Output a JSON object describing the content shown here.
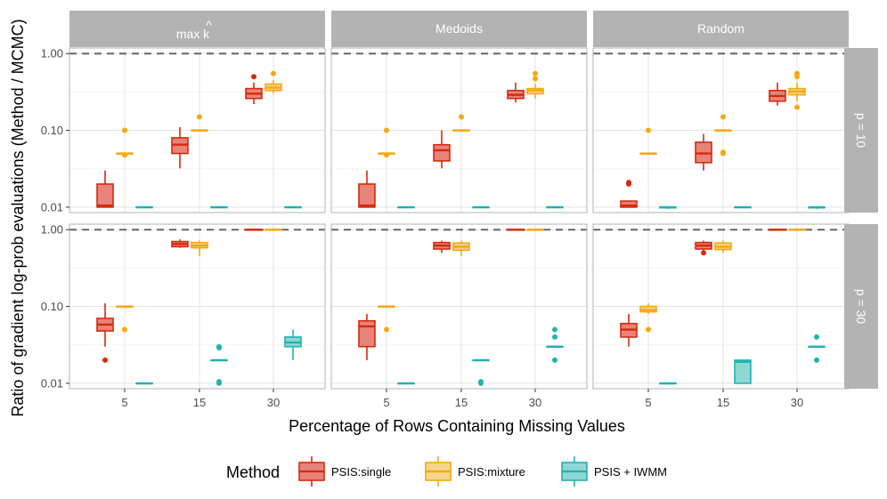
{
  "chart_data": {
    "type": "boxplot",
    "xlabel": "Percentage of Rows Containing Missing Values",
    "ylabel": "Ratio of gradient log-prob evaluations (Method / MCMC)",
    "y_scale": "log10",
    "ylim": [
      0.0085,
      1.18
    ],
    "y_ticks": [
      {
        "value": 0.01,
        "label": "0.01"
      },
      {
        "value": 0.1,
        "label": "0.10"
      },
      {
        "value": 1.0,
        "label": "1.00"
      }
    ],
    "reference_line": 1.0,
    "x_categories": [
      "5",
      "15",
      "30"
    ],
    "col_facets": [
      "max k̂",
      "Medoids",
      "Random"
    ],
    "col_facet_main": "max k",
    "col_facet_hat": "^",
    "row_facets": [
      "p = 10",
      "p = 30"
    ],
    "legend": {
      "title": "Method",
      "position": "bottom",
      "entries": [
        {
          "name": "PSIS:single",
          "stroke": "#D62A0B",
          "fill": "#E8837A"
        },
        {
          "name": "PSIS:mixture",
          "stroke": "#F5A80F",
          "fill": "#F8D58D"
        },
        {
          "name": "PSIS + IWMM",
          "stroke": "#21B3AE",
          "fill": "#8FD7D4"
        }
      ]
    },
    "panels": [
      {
        "row": 0,
        "col": 0,
        "boxes": [
          {
            "cat": 0,
            "method": 0,
            "stats": [
              0.01,
              0.01,
              0.0105,
              0.02,
              0.03
            ],
            "outliers": []
          },
          {
            "cat": 0,
            "method": 1,
            "stats": [
              0.05,
              0.05,
              0.05,
              0.05,
              0.05
            ],
            "outliers": [
              0.1,
              0.048
            ]
          },
          {
            "cat": 0,
            "method": 2,
            "stats": [
              0.01,
              0.01,
              0.01,
              0.01,
              0.01
            ],
            "outliers": []
          },
          {
            "cat": 1,
            "method": 0,
            "stats": [
              0.032,
              0.05,
              0.065,
              0.08,
              0.11
            ],
            "outliers": []
          },
          {
            "cat": 1,
            "method": 1,
            "stats": [
              0.1,
              0.1,
              0.1,
              0.1,
              0.1
            ],
            "outliers": [
              0.15
            ]
          },
          {
            "cat": 1,
            "method": 2,
            "stats": [
              0.01,
              0.01,
              0.01,
              0.01,
              0.01
            ],
            "outliers": []
          },
          {
            "cat": 2,
            "method": 0,
            "stats": [
              0.22,
              0.26,
              0.3,
              0.35,
              0.42
            ],
            "outliers": [
              0.5
            ]
          },
          {
            "cat": 2,
            "method": 1,
            "stats": [
              0.3,
              0.33,
              0.36,
              0.4,
              0.45
            ],
            "outliers": [
              0.55
            ]
          },
          {
            "cat": 2,
            "method": 2,
            "stats": [
              0.01,
              0.01,
              0.01,
              0.01,
              0.01
            ],
            "outliers": []
          }
        ]
      },
      {
        "row": 0,
        "col": 1,
        "boxes": [
          {
            "cat": 0,
            "method": 0,
            "stats": [
              0.01,
              0.01,
              0.0105,
              0.02,
              0.03
            ],
            "outliers": []
          },
          {
            "cat": 0,
            "method": 1,
            "stats": [
              0.05,
              0.05,
              0.05,
              0.05,
              0.05
            ],
            "outliers": [
              0.1,
              0.048
            ]
          },
          {
            "cat": 0,
            "method": 2,
            "stats": [
              0.01,
              0.01,
              0.01,
              0.01,
              0.01
            ],
            "outliers": []
          },
          {
            "cat": 1,
            "method": 0,
            "stats": [
              0.032,
              0.04,
              0.055,
              0.065,
              0.1
            ],
            "outliers": []
          },
          {
            "cat": 1,
            "method": 1,
            "stats": [
              0.1,
              0.1,
              0.1,
              0.1,
              0.1
            ],
            "outliers": [
              0.15
            ]
          },
          {
            "cat": 1,
            "method": 2,
            "stats": [
              0.01,
              0.01,
              0.01,
              0.01,
              0.01
            ],
            "outliers": []
          },
          {
            "cat": 2,
            "method": 0,
            "stats": [
              0.23,
              0.26,
              0.29,
              0.33,
              0.42
            ],
            "outliers": []
          },
          {
            "cat": 2,
            "method": 1,
            "stats": [
              0.26,
              0.3,
              0.33,
              0.35,
              0.4
            ],
            "outliers": [
              0.55,
              0.47
            ]
          },
          {
            "cat": 2,
            "method": 2,
            "stats": [
              0.01,
              0.01,
              0.01,
              0.01,
              0.01
            ],
            "outliers": []
          }
        ]
      },
      {
        "row": 0,
        "col": 2,
        "boxes": [
          {
            "cat": 0,
            "method": 0,
            "stats": [
              0.01,
              0.01,
              0.0105,
              0.012,
              0.012
            ],
            "outliers": [
              0.02,
              0.021
            ]
          },
          {
            "cat": 0,
            "method": 1,
            "stats": [
              0.05,
              0.05,
              0.05,
              0.05,
              0.05
            ],
            "outliers": [
              0.1
            ]
          },
          {
            "cat": 0,
            "method": 2,
            "stats": [
              0.0095,
              0.0098,
              0.01,
              0.01,
              0.0102
            ],
            "outliers": []
          },
          {
            "cat": 1,
            "method": 0,
            "stats": [
              0.03,
              0.038,
              0.05,
              0.07,
              0.09
            ],
            "outliers": []
          },
          {
            "cat": 1,
            "method": 1,
            "stats": [
              0.1,
              0.1,
              0.1,
              0.1,
              0.1
            ],
            "outliers": [
              0.15,
              0.05,
              0.052
            ]
          },
          {
            "cat": 1,
            "method": 2,
            "stats": [
              0.01,
              0.01,
              0.01,
              0.01,
              0.01
            ],
            "outliers": []
          },
          {
            "cat": 2,
            "method": 0,
            "stats": [
              0.21,
              0.24,
              0.28,
              0.33,
              0.42
            ],
            "outliers": []
          },
          {
            "cat": 2,
            "method": 1,
            "stats": [
              0.24,
              0.29,
              0.32,
              0.35,
              0.42
            ],
            "outliers": [
              0.55,
              0.5,
              0.2
            ]
          },
          {
            "cat": 2,
            "method": 2,
            "stats": [
              0.0095,
              0.0098,
              0.01,
              0.01,
              0.0102
            ],
            "outliers": []
          }
        ]
      },
      {
        "row": 1,
        "col": 0,
        "boxes": [
          {
            "cat": 0,
            "method": 0,
            "stats": [
              0.03,
              0.048,
              0.058,
              0.07,
              0.11
            ],
            "outliers": [
              0.02
            ]
          },
          {
            "cat": 0,
            "method": 1,
            "stats": [
              0.1,
              0.1,
              0.1,
              0.1,
              0.1
            ],
            "outliers": [
              0.05
            ]
          },
          {
            "cat": 0,
            "method": 2,
            "stats": [
              0.01,
              0.01,
              0.01,
              0.01,
              0.01
            ],
            "outliers": []
          },
          {
            "cat": 1,
            "method": 0,
            "stats": [
              0.58,
              0.6,
              0.65,
              0.7,
              0.75
            ],
            "outliers": []
          },
          {
            "cat": 1,
            "method": 1,
            "stats": [
              0.45,
              0.58,
              0.62,
              0.68,
              0.72
            ],
            "outliers": []
          },
          {
            "cat": 1,
            "method": 2,
            "stats": [
              0.02,
              0.02,
              0.02,
              0.02,
              0.02
            ],
            "outliers": [
              0.01,
              0.0105,
              0.03,
              0.029
            ]
          },
          {
            "cat": 2,
            "method": 0,
            "stats": [
              1.0,
              1.0,
              1.0,
              1.0,
              1.0
            ],
            "outliers": []
          },
          {
            "cat": 2,
            "method": 1,
            "stats": [
              1.0,
              1.0,
              1.0,
              1.0,
              1.0
            ],
            "outliers": []
          },
          {
            "cat": 2,
            "method": 2,
            "stats": [
              0.02,
              0.03,
              0.034,
              0.04,
              0.05
            ],
            "outliers": []
          }
        ]
      },
      {
        "row": 1,
        "col": 1,
        "boxes": [
          {
            "cat": 0,
            "method": 0,
            "stats": [
              0.02,
              0.03,
              0.055,
              0.065,
              0.08
            ],
            "outliers": []
          },
          {
            "cat": 0,
            "method": 1,
            "stats": [
              0.1,
              0.1,
              0.1,
              0.1,
              0.1
            ],
            "outliers": [
              0.05
            ]
          },
          {
            "cat": 0,
            "method": 2,
            "stats": [
              0.01,
              0.01,
              0.01,
              0.01,
              0.01
            ],
            "outliers": []
          },
          {
            "cat": 1,
            "method": 0,
            "stats": [
              0.5,
              0.56,
              0.62,
              0.68,
              0.72
            ],
            "outliers": []
          },
          {
            "cat": 1,
            "method": 1,
            "stats": [
              0.45,
              0.54,
              0.6,
              0.67,
              0.72
            ],
            "outliers": []
          },
          {
            "cat": 1,
            "method": 2,
            "stats": [
              0.02,
              0.02,
              0.02,
              0.02,
              0.02
            ],
            "outliers": [
              0.01,
              0.0105
            ]
          },
          {
            "cat": 2,
            "method": 0,
            "stats": [
              1.0,
              1.0,
              1.0,
              1.0,
              1.0
            ],
            "outliers": []
          },
          {
            "cat": 2,
            "method": 1,
            "stats": [
              1.0,
              1.0,
              1.0,
              1.0,
              1.0
            ],
            "outliers": []
          },
          {
            "cat": 2,
            "method": 2,
            "stats": [
              0.03,
              0.03,
              0.03,
              0.03,
              0.03
            ],
            "outliers": [
              0.05,
              0.04,
              0.02
            ]
          }
        ]
      },
      {
        "row": 1,
        "col": 2,
        "boxes": [
          {
            "cat": 0,
            "method": 0,
            "stats": [
              0.03,
              0.04,
              0.05,
              0.06,
              0.08
            ],
            "outliers": []
          },
          {
            "cat": 0,
            "method": 1,
            "stats": [
              0.08,
              0.085,
              0.09,
              0.1,
              0.11
            ],
            "outliers": [
              0.05
            ]
          },
          {
            "cat": 0,
            "method": 2,
            "stats": [
              0.01,
              0.01,
              0.01,
              0.01,
              0.01
            ],
            "outliers": []
          },
          {
            "cat": 1,
            "method": 0,
            "stats": [
              0.5,
              0.56,
              0.62,
              0.68,
              0.72
            ],
            "outliers": [
              0.5
            ]
          },
          {
            "cat": 1,
            "method": 1,
            "stats": [
              0.5,
              0.55,
              0.6,
              0.67,
              0.72
            ],
            "outliers": []
          },
          {
            "cat": 1,
            "method": 2,
            "stats": [
              0.01,
              0.01,
              0.019,
              0.02,
              0.02
            ],
            "outliers": []
          },
          {
            "cat": 2,
            "method": 0,
            "stats": [
              1.0,
              1.0,
              1.0,
              1.0,
              1.0
            ],
            "outliers": []
          },
          {
            "cat": 2,
            "method": 1,
            "stats": [
              1.0,
              1.0,
              1.0,
              1.0,
              1.0
            ],
            "outliers": []
          },
          {
            "cat": 2,
            "method": 2,
            "stats": [
              0.03,
              0.03,
              0.03,
              0.03,
              0.03
            ],
            "outliers": [
              0.04,
              0.02
            ]
          }
        ]
      }
    ]
  }
}
